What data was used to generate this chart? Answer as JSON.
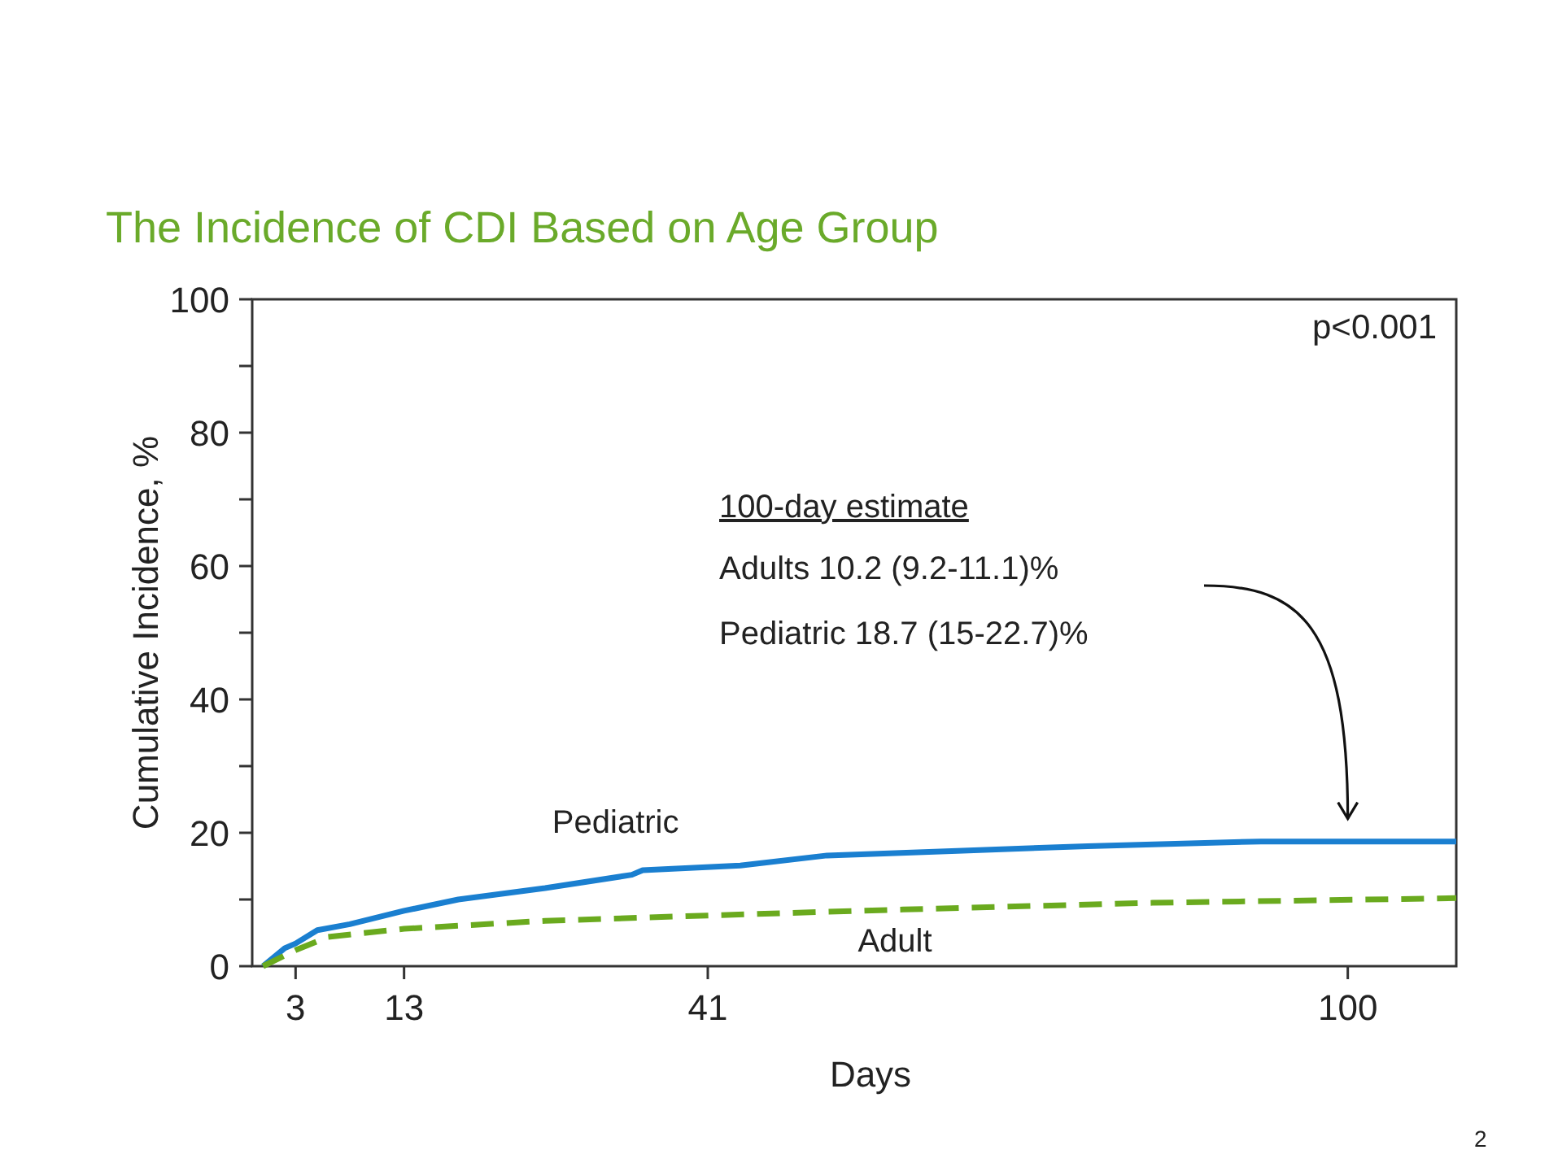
{
  "chart_data": {
    "type": "line",
    "title": "The Incidence of CDI Based on Age Group",
    "xlabel": "Days",
    "ylabel": "Cumulative Incidence, %",
    "xlim": [
      -1,
      110
    ],
    "xticks": [
      3,
      13,
      41,
      100
    ],
    "ylim": [
      0,
      100
    ],
    "yticks": [
      0,
      {
        "value": 10,
        "label": null
      },
      20,
      {
        "value": 30,
        "label": null
      },
      40,
      {
        "value": 50,
        "label": null
      },
      60,
      {
        "value": 70,
        "label": null
      },
      80,
      {
        "value": 90,
        "label": null
      },
      100
    ],
    "grid": false,
    "legend": false,
    "marker": "none",
    "series": [
      {
        "name": "Pediatric",
        "color": "#1a7fd0",
        "line_style": "solid",
        "x": [
          0,
          2,
          3,
          5,
          8,
          13,
          18,
          26,
          34,
          35,
          44,
          52,
          64,
          76,
          92,
          110
        ],
        "values": [
          0,
          2.7,
          3.4,
          5.4,
          6.3,
          8.3,
          10,
          11.7,
          13.7,
          14.4,
          15.1,
          16.6,
          17.3,
          18,
          18.7,
          18.7
        ]
      },
      {
        "name": "Adult",
        "color": "#6aaa1e",
        "line_style": "dashed",
        "x": [
          0,
          3,
          6,
          13,
          26,
          41,
          59,
          82,
          110
        ],
        "values": [
          0,
          2.4,
          4.4,
          5.6,
          6.8,
          7.6,
          8.5,
          9.5,
          10.2
        ]
      }
    ],
    "annotations": [
      "p<0.001",
      "100-day estimate",
      "Adults 10.2 (9.2-11.1)%",
      "Pediatric 18.7 (15-22.7)%",
      "2"
    ]
  }
}
